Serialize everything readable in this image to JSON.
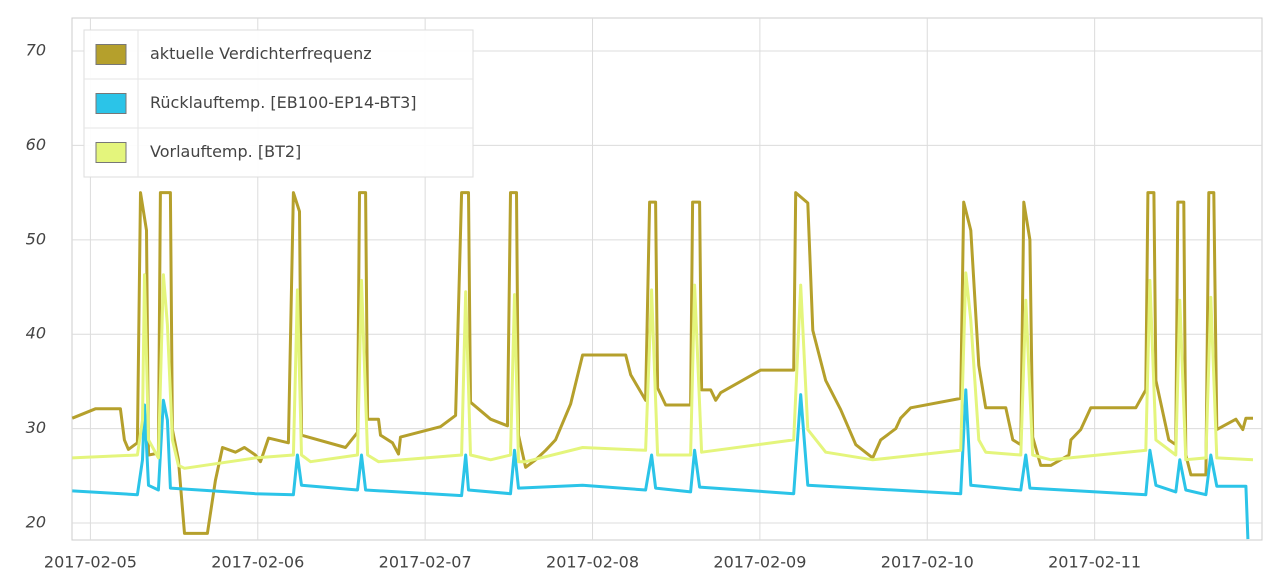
{
  "chart_data": {
    "type": "line",
    "xlim": [
      4.89,
      12.0
    ],
    "xticks": [
      {
        "value": 5,
        "label": "2017-02-05"
      },
      {
        "value": 6,
        "label": "2017-02-06"
      },
      {
        "value": 7,
        "label": "2017-02-07"
      },
      {
        "value": 8,
        "label": "2017-02-08"
      },
      {
        "value": 9,
        "label": "2017-02-09"
      },
      {
        "value": 10,
        "label": "2017-02-10"
      },
      {
        "value": 11,
        "label": "2017-02-11"
      }
    ],
    "ylim": [
      18.2,
      73.5
    ],
    "yticks": [
      20,
      30,
      40,
      50,
      60,
      70
    ],
    "grid": true,
    "legend": "top-left",
    "series": [
      {
        "name": "aktuelle Verdichterfrequenz",
        "color": "#b5a02c",
        "x": [
          4.892,
          5.03,
          5.179,
          5.203,
          5.227,
          5.281,
          5.299,
          5.335,
          5.347,
          5.406,
          5.418,
          5.478,
          5.49,
          5.526,
          5.562,
          5.699,
          5.747,
          5.789,
          5.867,
          5.92,
          5.986,
          6.016,
          6.064,
          6.183,
          6.213,
          6.249,
          6.261,
          6.524,
          6.596,
          6.608,
          6.644,
          6.656,
          6.721,
          6.733,
          6.805,
          6.841,
          6.853,
          7.092,
          7.182,
          7.218,
          7.259,
          7.271,
          7.391,
          7.492,
          7.51,
          7.546,
          7.558,
          7.6,
          7.66,
          7.72,
          7.779,
          7.869,
          7.941,
          8.198,
          8.228,
          8.317,
          8.341,
          8.377,
          8.389,
          8.437,
          8.586,
          8.598,
          8.64,
          8.652,
          8.706,
          8.736,
          8.766,
          9.005,
          9.202,
          9.214,
          9.286,
          9.316,
          9.393,
          9.483,
          9.573,
          9.674,
          9.722,
          9.812,
          9.841,
          9.901,
          10.2,
          10.218,
          10.26,
          10.308,
          10.349,
          10.469,
          10.511,
          10.559,
          10.577,
          10.613,
          10.63,
          10.678,
          10.738,
          10.846,
          10.858,
          10.917,
          10.977,
          11.246,
          11.306,
          11.318,
          11.354,
          11.366,
          11.443,
          11.485,
          11.497,
          11.533,
          11.545,
          11.575,
          11.665,
          11.682,
          11.712,
          11.73,
          11.844,
          11.885,
          11.904,
          11.946
        ],
        "values": [
          31.1,
          32.1,
          32.1,
          28.8,
          27.8,
          28.5,
          55,
          51,
          27.2,
          27.4,
          55,
          55,
          29.9,
          26.7,
          18.9,
          18.9,
          24.5,
          28,
          27.5,
          28,
          27.2,
          26.5,
          29,
          28.5,
          55,
          53,
          29.3,
          28,
          29.6,
          55,
          55,
          31,
          31,
          29.3,
          28.5,
          27.3,
          29.1,
          30.2,
          31.4,
          55,
          55,
          32.8,
          31,
          30.3,
          55,
          55,
          29.3,
          25.9,
          26.7,
          27.7,
          28.8,
          32.6,
          37.8,
          37.8,
          35.7,
          33,
          54,
          54,
          34.3,
          32.5,
          32.5,
          54,
          54,
          34.1,
          34.1,
          33,
          33.8,
          36.2,
          36.2,
          55,
          53.9,
          40.4,
          35.1,
          32,
          28.3,
          26.9,
          28.8,
          30,
          31.1,
          32.2,
          33.2,
          54,
          51,
          36.7,
          32.2,
          32.2,
          28.8,
          28.3,
          54,
          50,
          29.1,
          26.1,
          26.1,
          27.2,
          28.8,
          29.9,
          32.2,
          32.2,
          34.1,
          55,
          55,
          35.1,
          28.8,
          28.3,
          54,
          54,
          27.2,
          25.1,
          25.1,
          55,
          55,
          29.9,
          31,
          29.9,
          31.1,
          31.1
        ]
      },
      {
        "name": "Rücklauftemp. [EB100-EP14-BT3]",
        "color": "#2bc4e8",
        "x": [
          4.892,
          5.281,
          5.311,
          5.323,
          5.347,
          5.406,
          5.436,
          5.46,
          5.478,
          5.986,
          6.213,
          6.237,
          6.261,
          6.596,
          6.62,
          6.644,
          7.218,
          7.242,
          7.259,
          7.51,
          7.534,
          7.558,
          7.941,
          8.317,
          8.353,
          8.377,
          8.586,
          8.61,
          8.64,
          9.202,
          9.244,
          9.286,
          10.2,
          10.23,
          10.26,
          10.559,
          10.589,
          10.613,
          11.306,
          11.33,
          11.366,
          11.485,
          11.509,
          11.545,
          11.665,
          11.694,
          11.73,
          11.904,
          11.916
        ],
        "values": [
          23.4,
          23,
          26.7,
          32.5,
          24,
          23.5,
          33,
          30.9,
          23.7,
          23.1,
          23,
          27.2,
          24,
          23.5,
          27.2,
          23.5,
          22.9,
          27.2,
          23.5,
          23.1,
          27.7,
          23.7,
          24,
          23.5,
          27.2,
          23.7,
          23.3,
          27.7,
          23.8,
          23.1,
          33.6,
          24,
          23.1,
          34.1,
          24,
          23.5,
          27.2,
          23.7,
          23,
          27.7,
          24,
          23.3,
          26.7,
          23.5,
          23,
          27.2,
          23.9,
          23.9,
          18.3
        ]
      },
      {
        "name": "Vorlauftemp. [BT2]",
        "color": "#e4f57c",
        "x": [
          4.892,
          5.281,
          5.311,
          5.323,
          5.347,
          5.406,
          5.436,
          5.46,
          5.49,
          5.526,
          5.562,
          5.986,
          6.213,
          6.237,
          6.261,
          6.315,
          6.596,
          6.62,
          6.656,
          6.721,
          7.218,
          7.242,
          7.271,
          7.391,
          7.51,
          7.534,
          7.558,
          7.6,
          7.941,
          8.317,
          8.353,
          8.389,
          8.586,
          8.61,
          8.652,
          9.202,
          9.244,
          9.286,
          9.393,
          9.674,
          10.2,
          10.23,
          10.26,
          10.308,
          10.349,
          10.559,
          10.589,
          10.63,
          10.738,
          11.306,
          11.33,
          11.366,
          11.485,
          11.509,
          11.545,
          11.665,
          11.694,
          11.73,
          11.946
        ],
        "values": [
          26.9,
          27.2,
          30.9,
          46.3,
          28.8,
          26.9,
          46.3,
          41,
          28.8,
          26.1,
          25.8,
          26.9,
          27.2,
          44.7,
          27.2,
          26.5,
          27.2,
          45.7,
          27.2,
          26.5,
          27.2,
          44.5,
          27.2,
          26.7,
          27.2,
          44.2,
          26.5,
          26.5,
          28,
          27.7,
          44.7,
          27.2,
          27.2,
          45.2,
          27.5,
          28.8,
          45.2,
          29.9,
          27.5,
          26.7,
          27.7,
          46.5,
          41.5,
          28.8,
          27.5,
          27.2,
          43.6,
          27.2,
          26.7,
          27.7,
          45.7,
          28.8,
          27.2,
          43.6,
          26.7,
          26.9,
          43.9,
          26.9,
          26.7
        ]
      }
    ]
  }
}
